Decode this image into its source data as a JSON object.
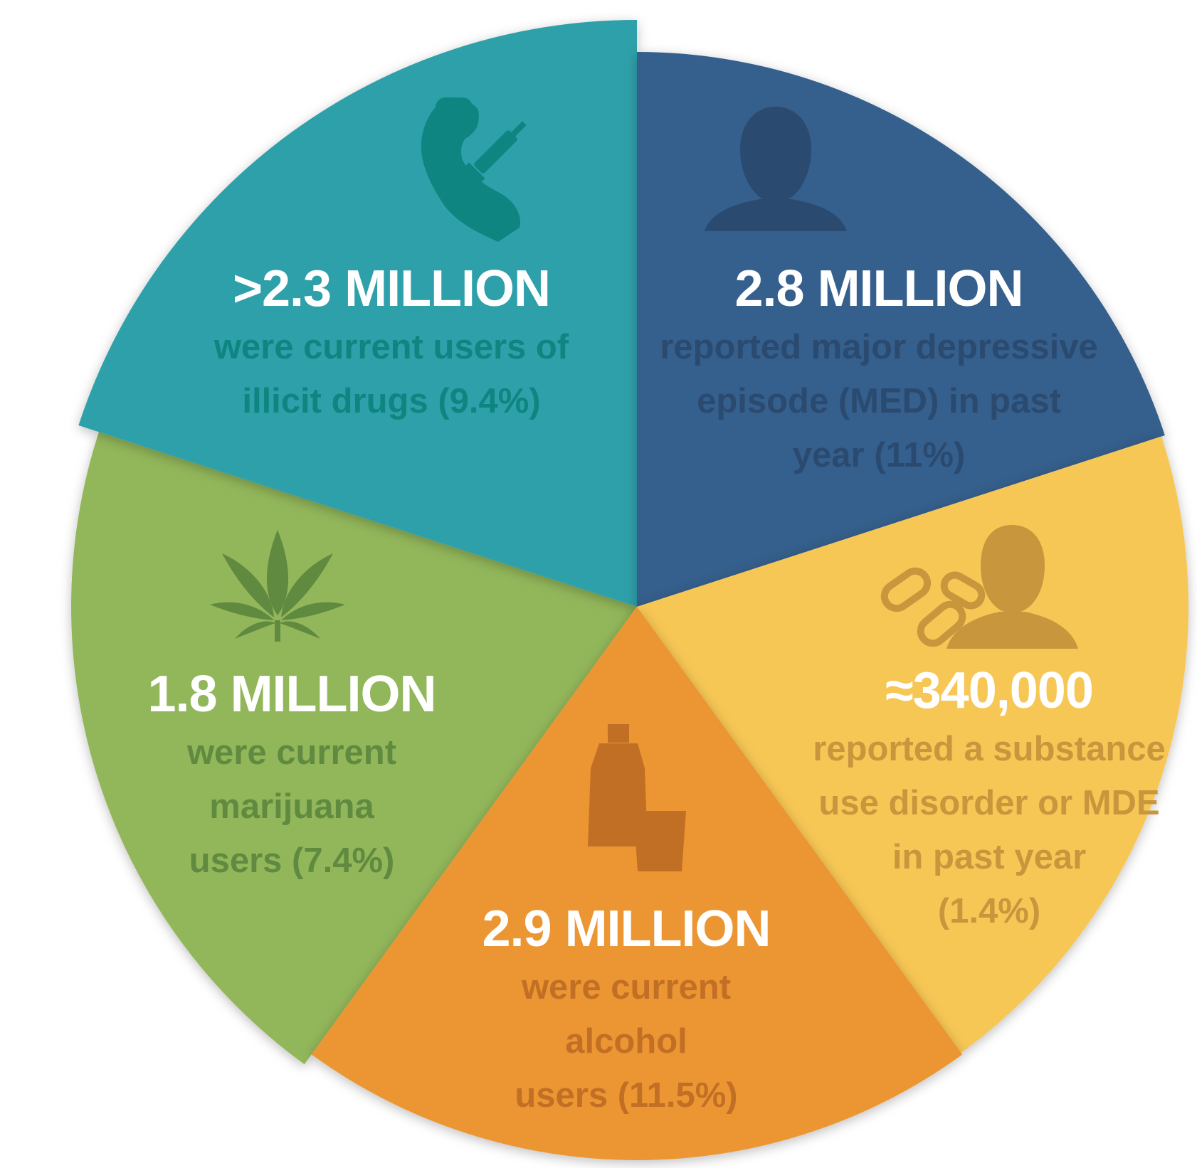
{
  "chart_data": {
    "type": "pie",
    "slices": [
      {
        "id": "illicit-drugs",
        "headline": ">2.3 MILLION",
        "description": [
          "were current users of",
          "illicit drugs (9.4%)"
        ],
        "percent": 9.4,
        "color": "#2fa0aa",
        "text_color": "#0e8580",
        "icon": "arm-syringe-icon"
      },
      {
        "id": "depression",
        "headline": "2.8 MILLION",
        "description": [
          "reported major depressive",
          "episode (MED) in past",
          "year (11%)"
        ],
        "percent": 11,
        "color": "#355f8c",
        "text_color": "#2a4a70",
        "icon": "person-silhouette-icon"
      },
      {
        "id": "sud-mde",
        "headline": "≈340,000",
        "description": [
          "reported a substance",
          "use disorder or MDE",
          "in past year",
          "(1.4%)"
        ],
        "percent": 1.4,
        "color": "#f7c755",
        "text_color": "#c8963c",
        "icon": "pills-person-icon"
      },
      {
        "id": "alcohol",
        "headline": "2.9 MILLION",
        "description": [
          "were current",
          "alcohol",
          "users (11.5%)"
        ],
        "percent": 11.5,
        "color": "#eb9632",
        "text_color": "#c26f26",
        "icon": "bottle-glass-icon"
      },
      {
        "id": "marijuana",
        "headline": "1.8 MILLION",
        "description": [
          "were current",
          "marijuana",
          "users (7.4%)"
        ],
        "percent": 7.4,
        "color": "#92b65a",
        "text_color": "#5f8a3f",
        "icon": "cannabis-leaf-icon"
      }
    ]
  }
}
